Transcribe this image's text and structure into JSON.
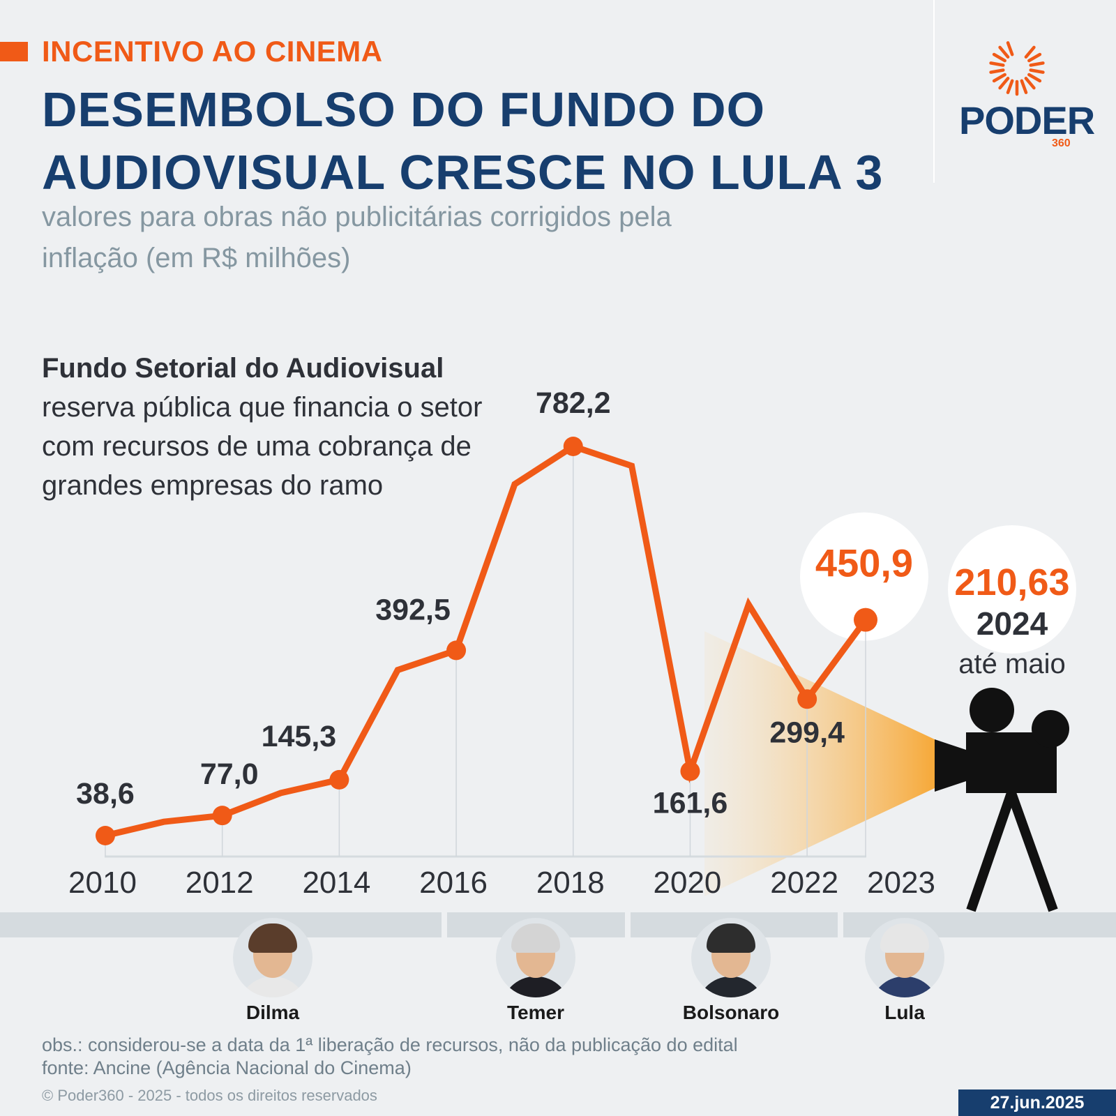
{
  "header": {
    "kicker": "INCENTIVO AO CINEMA",
    "title": "DESEMBOLSO DO FUNDO DO AUDIOVISUAL CRESCE NO LULA 3",
    "subtitle": "valores para obras não publicitárias corrigidos pela inflação (em R$ milhões)"
  },
  "brand": {
    "name": "PODER",
    "sub": "360",
    "accent": "#f05a17",
    "navy": "#173e6e",
    "icon": "sunburst-logo-icon"
  },
  "description": {
    "heading": "Fundo Setorial do Audiovisual",
    "body": "reserva pública que financia o setor com recursos de uma cobrança de grandes empresas do ramo"
  },
  "chart_data": {
    "type": "line",
    "title": "DESEMBOLSO DO FUNDO DO AUDIOVISUAL CRESCE NO LULA 3",
    "xlabel": "",
    "ylabel": "",
    "x": [
      2010,
      2011,
      2012,
      2013,
      2014,
      2015,
      2016,
      2017,
      2018,
      2019,
      2020,
      2021,
      2022,
      2023
    ],
    "y": [
      38.6,
      65,
      77.0,
      120,
      145.3,
      355,
      392.5,
      710,
      782.2,
      745,
      161.6,
      480,
      299.4,
      450.9
    ],
    "ylim": [
      0,
      800
    ],
    "x_ticks": [
      "2010",
      "2012",
      "2014",
      "2016",
      "2018",
      "2020",
      "2022",
      "2023"
    ],
    "labels": [
      {
        "year": 2010,
        "text": "38,6"
      },
      {
        "year": 2012,
        "text": "77,0"
      },
      {
        "year": 2014,
        "text": "145,3"
      },
      {
        "year": 2016,
        "text": "392,5"
      },
      {
        "year": 2018,
        "text": "782,2"
      },
      {
        "year": 2020,
        "text": "161,6"
      },
      {
        "year": 2022,
        "text": "299,4"
      },
      {
        "year": 2023,
        "text": "450,9",
        "highlight": true
      }
    ],
    "callout_2024": {
      "value": "210,63",
      "year": "2024",
      "note": "até maio"
    },
    "line_color": "#f05a17",
    "grid": false
  },
  "presidents": [
    {
      "name": "Dilma",
      "hair": "#5a3d2b",
      "torso": "#e8e8e8"
    },
    {
      "name": "Temer",
      "hair": "#d4d4d4",
      "torso": "#1e1e24"
    },
    {
      "name": "Bolsonaro",
      "hair": "#2d2d2d",
      "torso": "#23272e"
    },
    {
      "name": "Lula",
      "hair": "#e6e6e6",
      "torso": "#2c3e6b"
    }
  ],
  "footer": {
    "obs": "obs.: considerou-se a data da 1ª liberação de recursos, não da publicação do edital",
    "source": "fonte: Ancine (Agência Nacional do Cinema)",
    "copyright": "© Poder360 - 2025 - todos os direitos reservados",
    "date": "27.jun.2025"
  }
}
